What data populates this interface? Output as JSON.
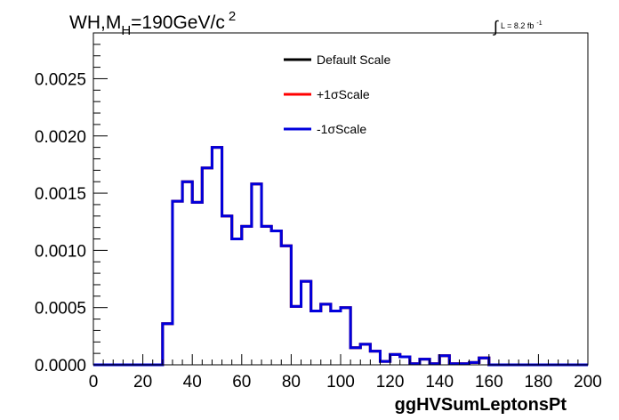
{
  "chart_data": {
    "type": "line",
    "style": "step-histogram",
    "title": {
      "main": "WH,M",
      "subscript": "H",
      "rest": "=190GeV/c",
      "superscript": "2"
    },
    "lumi": {
      "integral": "∫",
      "text": "L = 8.2 fb",
      "superscript": "-1"
    },
    "xlabel": "ggHVSumLeptonsPt",
    "ylabel": "",
    "xlim": [
      0,
      200
    ],
    "ylim": [
      0,
      0.0029
    ],
    "xticks": [
      0,
      20,
      40,
      60,
      80,
      100,
      120,
      140,
      160,
      180,
      200
    ],
    "xtick_labels": [
      "0",
      "20",
      "40",
      "60",
      "80",
      "100",
      "120",
      "140",
      "160",
      "180",
      "200"
    ],
    "yticks": [
      0,
      0.0005,
      0.001,
      0.0015,
      0.002,
      0.0025
    ],
    "ytick_labels": [
      "0.0000",
      "0.0005",
      "0.0010",
      "0.0015",
      "0.0020",
      "0.0025"
    ],
    "grid": false,
    "legend_position": "top-center",
    "bin_width": 4,
    "bin_edges_start": 0,
    "series": [
      {
        "name": "Default Scale",
        "color": "#000000",
        "values": [
          0,
          0,
          0,
          0,
          0,
          0,
          0,
          0.00036,
          0.00143,
          0.0016,
          0.00142,
          0.00172,
          0.0019,
          0.0013,
          0.0011,
          0.00121,
          0.00158,
          0.00121,
          0.00117,
          0.00104,
          0.00051,
          0.00073,
          0.00047,
          0.00053,
          0.00047,
          0.0005,
          0.00015,
          0.00018,
          0.00012,
          3e-05,
          9e-05,
          7e-05,
          1e-05,
          5e-05,
          1e-05,
          8e-05,
          1e-05,
          1e-05,
          2e-05,
          6e-05,
          0,
          0,
          0,
          0,
          0,
          0,
          0,
          0,
          0,
          0
        ]
      },
      {
        "name": "+1σScale",
        "color": "#ff0000",
        "values": [
          0,
          0,
          0,
          0,
          0,
          0,
          0,
          0.00036,
          0.00143,
          0.0016,
          0.00142,
          0.00172,
          0.0019,
          0.0013,
          0.0011,
          0.00121,
          0.00158,
          0.00121,
          0.00117,
          0.00104,
          0.00051,
          0.00073,
          0.00047,
          0.00053,
          0.00047,
          0.0005,
          0.00015,
          0.00018,
          0.00012,
          3e-05,
          9e-05,
          7e-05,
          1e-05,
          5e-05,
          1e-05,
          8e-05,
          1e-05,
          1e-05,
          2e-05,
          6e-05,
          0,
          0,
          0,
          0,
          0,
          0,
          0,
          0,
          0,
          0
        ]
      },
      {
        "name": "-1σScale",
        "color": "#0000dd",
        "values": [
          0,
          0,
          0,
          0,
          0,
          0,
          0,
          0.00036,
          0.00143,
          0.0016,
          0.00142,
          0.00172,
          0.0019,
          0.0013,
          0.0011,
          0.00121,
          0.00158,
          0.00121,
          0.00117,
          0.00104,
          0.00051,
          0.00073,
          0.00047,
          0.00053,
          0.00047,
          0.0005,
          0.00015,
          0.00018,
          0.00012,
          3e-05,
          9e-05,
          7e-05,
          1e-05,
          5e-05,
          1e-05,
          8e-05,
          1e-05,
          1e-05,
          2e-05,
          6e-05,
          0,
          0,
          0,
          0,
          0,
          0,
          0,
          0,
          0,
          0
        ]
      }
    ]
  }
}
